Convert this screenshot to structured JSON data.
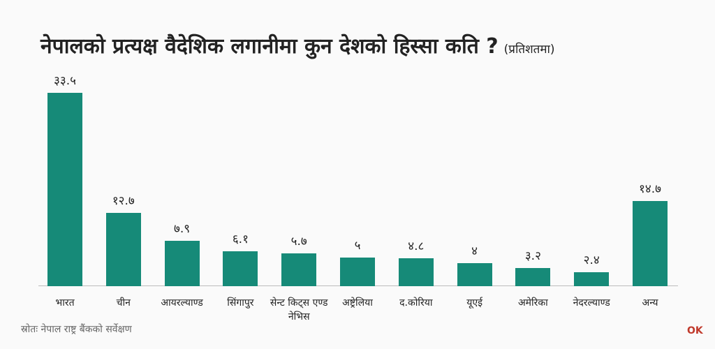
{
  "chart_data": {
    "type": "bar",
    "title": "नेपालको प्रत्यक्ष वैदेशिक लगानीमा कुन देशको हिस्सा कति ?",
    "subtitle": "(प्रतिशतमा)",
    "source": "स्रोतः नेपाल राष्ट्र बैंकको सर्वेक्षण",
    "categories": [
      "भारत",
      "चीन",
      "आयरल्याण्ड",
      "सिंगापुर",
      "सेन्ट किट्स एण्ड नेभिस",
      "अष्ट्रेलिया",
      "द.कोरिया",
      "यूएई",
      "अमेरिका",
      "नेदरल्याण्ड",
      "अन्य"
    ],
    "values": [
      33.5,
      12.7,
      7.9,
      6.1,
      5.7,
      5,
      4.8,
      4,
      3.2,
      2.4,
      14.7
    ],
    "value_labels": [
      "३३.५",
      "१२.७",
      "७.९",
      "६.१",
      "५.७",
      "५",
      "४.८",
      "४",
      "३.२",
      "२.४",
      "१४.७"
    ],
    "color": "#168a78",
    "ylim": [
      0,
      33.5
    ]
  },
  "logo": "OK"
}
